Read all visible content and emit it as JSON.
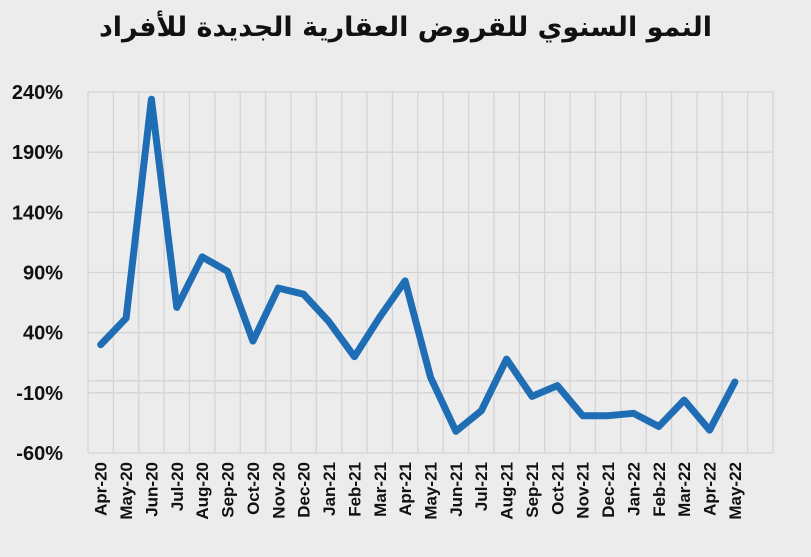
{
  "chart_data": {
    "type": "line",
    "title": "النمو السنوي للقروض العقارية الجديدة للأفراد",
    "xlabel": "",
    "ylabel": "",
    "ylim": [
      -60,
      240
    ],
    "yticks": [
      240,
      190,
      140,
      90,
      40,
      -10,
      -60
    ],
    "ytick_labels": [
      "240%",
      "190%",
      "140%",
      "90%",
      "40%",
      "-10%",
      "-60%"
    ],
    "grid": true,
    "legend": "none",
    "categories": [
      "Apr-20",
      "May-20",
      "Jun-20",
      "Jul-20",
      "Aug-20",
      "Sep-20",
      "Oct-20",
      "Nov-20",
      "Dec-20",
      "Jan-21",
      "Feb-21",
      "Mar-21",
      "Apr-21",
      "May-21",
      "Jun-21",
      "Jul-21",
      "Aug-21",
      "Sep-21",
      "Oct-21",
      "Nov-21",
      "Dec-21",
      "Jan-22",
      "Feb-22",
      "Mar-22",
      "Apr-22",
      "May-22"
    ],
    "series": [
      {
        "name": "النمو السنوي",
        "color": "#1f6db5",
        "values": [
          30,
          52,
          234,
          61,
          103,
          91,
          33,
          77,
          72,
          49,
          20,
          53,
          83,
          3,
          -42,
          -25,
          18,
          -13,
          -4,
          -29,
          -29,
          -27,
          -38,
          -16,
          -41,
          -1
        ]
      }
    ]
  },
  "colors": {
    "background": "#ececec",
    "grid": "#d4d4d4",
    "line": "#1f6db5",
    "text": "#111111"
  }
}
